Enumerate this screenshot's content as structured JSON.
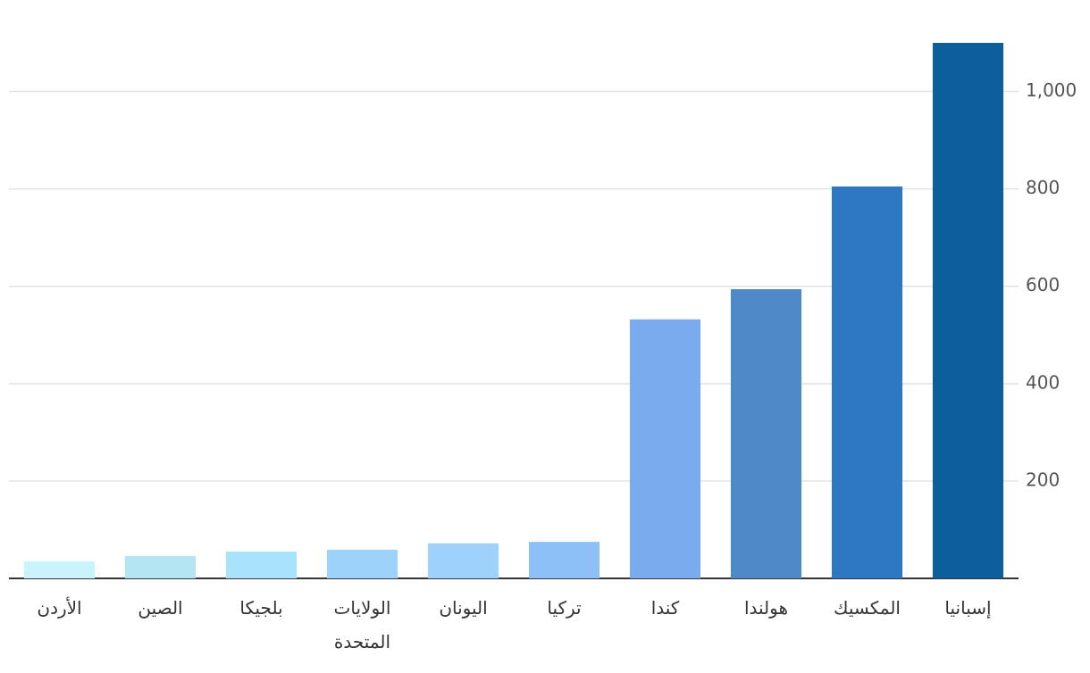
{
  "chart_data": {
    "type": "bar",
    "categories": [
      "الأردن",
      "الصين",
      "بلجيكا",
      "الولايات المتحدة",
      "اليونان",
      "تركيا",
      "كندا",
      "هولندا",
      "المكسيك",
      "إسبانيا"
    ],
    "values": [
      35,
      46,
      55,
      59,
      72,
      75,
      532,
      594,
      805,
      1100
    ],
    "colors": [
      "#c8f4fc",
      "#b3e6f2",
      "#a8e2fc",
      "#9dd2fb",
      "#9ed2fc",
      "#8ec0f8",
      "#7aabee",
      "#4f89c8",
      "#2e77c2",
      "#0d5e9c"
    ],
    "ylim": [
      0,
      1100
    ],
    "yticks": [
      200,
      400,
      600,
      800,
      {
        "value": 1000,
        "label": "1,000"
      }
    ],
    "grid": true
  }
}
